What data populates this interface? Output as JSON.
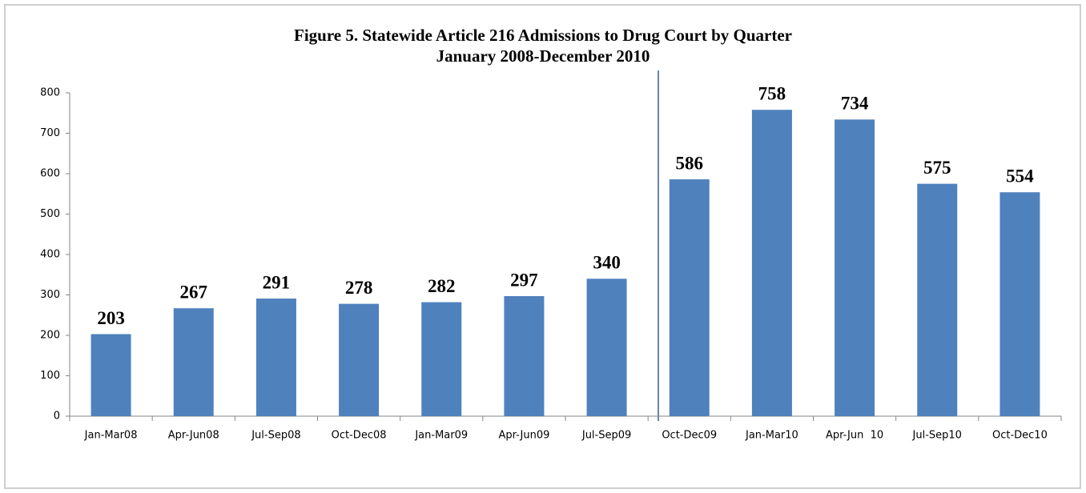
{
  "chart_data": {
    "type": "bar",
    "title": "Figure 5. Statewide Article 216 Admissions to Drug Court by Quarter",
    "subtitle": "January 2008-December 2010",
    "categories": [
      "Jan-Mar08",
      "Apr-Jun08",
      "Jul-Sep08",
      "Oct-Dec08",
      "Jan-Mar09",
      "Apr-Jun09",
      "Jul-Sep09",
      "Oct-Dec09",
      "Jan-Mar10",
      "Apr-Jun  10",
      "Jul-Sep10",
      "Oct-Dec10"
    ],
    "values": [
      203,
      267,
      291,
      278,
      282,
      297,
      340,
      586,
      758,
      734,
      575,
      554
    ],
    "color": "#4f81bd",
    "ylim": [
      0,
      800
    ],
    "yticks": [
      0,
      100,
      200,
      300,
      400,
      500,
      600,
      700,
      800
    ],
    "grid": false
  }
}
